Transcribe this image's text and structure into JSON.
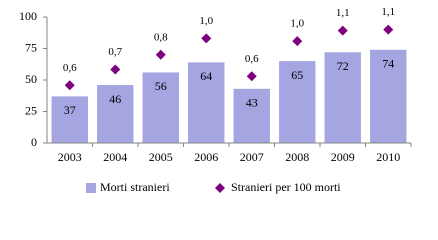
{
  "chart_data": {
    "type": "bar",
    "categories": [
      "2003",
      "2004",
      "2005",
      "2006",
      "2007",
      "2008",
      "2009",
      "2010"
    ],
    "series": [
      {
        "name": "Morti stranieri",
        "color": "#a5a5e2",
        "values": [
          37,
          46,
          56,
          64,
          43,
          65,
          72,
          74
        ]
      },
      {
        "name": "Stranieri per 100 morti",
        "color": "#7f007f",
        "axis": "y2",
        "type": "scatter",
        "values": [
          0.55,
          0.7,
          0.84,
          0.996,
          0.636,
          0.97,
          1.07,
          1.08
        ],
        "value_labels": [
          "0,6",
          "0,7",
          "0,8",
          "1,0",
          "0,6",
          "1,0",
          "1,1",
          "1,1"
        ]
      }
    ],
    "ylim": [
      0,
      100
    ],
    "yticks": [
      0,
      25,
      50,
      75,
      100
    ],
    "y2lim": [
      0,
      1.2
    ],
    "legend": "bottom"
  }
}
